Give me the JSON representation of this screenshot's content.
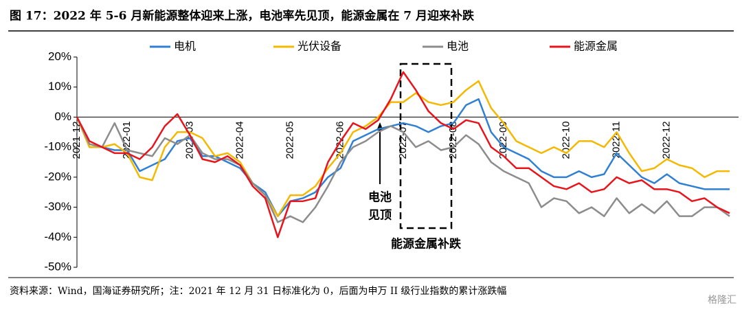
{
  "chart_data": {
    "type": "line",
    "title": "图 17：2022 年 5-6 月新能源整体迎来上涨，电池率先见顶，能源金属在 7 月迎来补跌",
    "source": "资料来源：Wind，国海证券研究所；注：2021 年 12 月 31 日标准化为 0，后面为申万 II 级行业指数的累计涨跌幅",
    "watermark": "格隆汇",
    "annotations": [
      "电池",
      "见顶",
      "能源金属补跌"
    ],
    "categories": [
      "2021-12",
      null,
      null,
      null,
      "2022-01",
      null,
      null,
      null,
      null,
      "2022-03",
      null,
      null,
      null,
      "2022-04",
      null,
      null,
      null,
      "2022-05",
      null,
      null,
      null,
      "2022-06",
      null,
      null,
      null,
      null,
      "2022-07",
      null,
      null,
      null,
      "2022-08",
      null,
      null,
      null,
      "2022-09",
      null,
      null,
      null,
      null,
      "2022-10",
      null,
      null,
      null,
      "2022-11",
      null,
      null,
      null,
      "2022-12",
      null,
      null,
      null,
      null,
      null
    ],
    "ylim": [
      -50,
      20
    ],
    "yticks": [
      {
        "value": 20,
        "label": "20%"
      },
      {
        "value": 10,
        "label": "10%"
      },
      {
        "value": 0,
        "label": "0%"
      },
      {
        "value": -10,
        "label": "-10%"
      },
      {
        "value": -20,
        "label": "-20%"
      },
      {
        "value": -30,
        "label": "-30%"
      },
      {
        "value": -40,
        "label": "-40%"
      },
      {
        "value": -50,
        "label": "-50%"
      }
    ],
    "series": [
      {
        "name": "电机",
        "color": "#2f7fd3",
        "values": [
          0,
          -10,
          -10,
          -11,
          -11,
          -18,
          -16,
          -14,
          -8,
          -7,
          -13,
          -13,
          -15,
          -17,
          -22,
          -25,
          -33,
          -28,
          -27,
          -25,
          -20,
          -17,
          -8,
          -6,
          -4,
          -3,
          -2,
          -3,
          -5,
          -3,
          -2,
          4,
          6,
          -5,
          -10,
          -12,
          -14,
          -18,
          -20,
          -20,
          -18,
          -20,
          -19,
          -12,
          -16,
          -20,
          -22,
          -19,
          -22,
          -23,
          -24,
          -24,
          -24
        ]
      },
      {
        "name": "光伏设备",
        "color": "#f5b800",
        "values": [
          0,
          -10,
          -10,
          -9,
          -12,
          -20,
          -21,
          -10,
          -5,
          -5,
          -7,
          -13,
          -12,
          -15,
          -22,
          -26,
          -33,
          -26,
          -26,
          -23,
          -17,
          -12,
          -5,
          -3,
          0,
          5,
          5,
          8,
          5,
          4,
          5,
          9,
          12,
          3,
          -2,
          -8,
          -10,
          -12,
          -10,
          -12,
          -8,
          -8,
          -10,
          -5,
          -12,
          -18,
          -17,
          -14,
          -16,
          -17,
          -20,
          -18,
          -18
        ]
      },
      {
        "name": "电池",
        "color": "#8c8c8c",
        "values": [
          0,
          -9,
          -10,
          -2,
          -11,
          -12,
          -13,
          -7,
          -9,
          -6,
          -12,
          -14,
          -14,
          -16,
          -22,
          -26,
          -35,
          -33,
          -35,
          -30,
          -23,
          -15,
          -10,
          -8,
          -5,
          -3,
          -5,
          -10,
          -8,
          -11,
          -10,
          -6,
          -9,
          -15,
          -18,
          -20,
          -22,
          -30,
          -27,
          -28,
          -32,
          -30,
          -33,
          -27,
          -32,
          -29,
          -32,
          -28,
          -33,
          -33,
          -30,
          -30,
          -33
        ]
      },
      {
        "name": "能源金属",
        "color": "#e8141b",
        "values": [
          0,
          -8,
          -10,
          -12,
          -12,
          -14,
          -10,
          -3,
          1,
          -6,
          -14,
          -15,
          -13,
          -16,
          -23,
          -27,
          -40,
          -28,
          -28,
          -27,
          -15,
          -8,
          -2,
          -4,
          -1,
          6,
          15,
          9,
          2,
          -2,
          -4,
          -1,
          -2,
          -10,
          -13,
          -17,
          -17,
          -20,
          -23,
          -24,
          -22,
          -25,
          -24,
          -20,
          -22,
          -21,
          -24,
          -24,
          -25,
          -28,
          -27,
          -30,
          -32
        ]
      }
    ]
  }
}
